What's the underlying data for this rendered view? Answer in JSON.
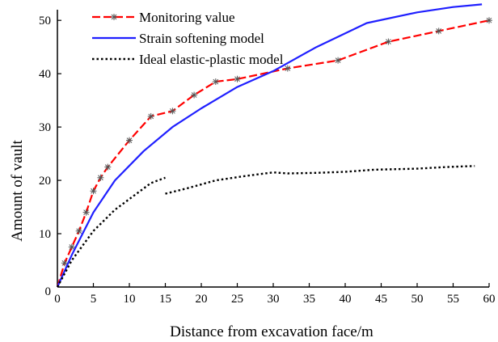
{
  "chart_data": {
    "type": "line",
    "title": "",
    "xlabel": "Distance from excavation face/m",
    "ylabel": "Amount of vault",
    "xlim": [
      0,
      60
    ],
    "ylim": [
      0,
      52
    ],
    "xticks": [
      0,
      5,
      10,
      15,
      20,
      25,
      30,
      35,
      40,
      45,
      50,
      55,
      60
    ],
    "yticks": [
      0,
      10,
      20,
      30,
      40,
      50
    ],
    "grid": false,
    "legend_position": "top-left",
    "series": [
      {
        "name": "Monitoring value",
        "color": "#ff0000",
        "line_style": "dashed",
        "marker": "asterisk",
        "x": [
          0,
          1,
          2,
          3,
          4,
          5,
          6,
          7,
          10,
          13,
          16,
          19,
          22,
          25,
          32,
          39,
          46,
          53,
          60
        ],
        "y": [
          0,
          4.5,
          7.5,
          10.5,
          14,
          18,
          20.5,
          22.5,
          27.5,
          32,
          33,
          36,
          38.5,
          39,
          41,
          42.5,
          46,
          48,
          50
        ]
      },
      {
        "name": "Strain softening model",
        "color": "#1f1fff",
        "line_style": "solid",
        "marker": "none",
        "x": [
          0,
          2,
          5,
          8,
          12,
          16,
          20,
          25,
          30,
          36,
          43,
          50,
          55,
          59
        ],
        "y": [
          0,
          6,
          14,
          20,
          25.5,
          30,
          33.5,
          37.5,
          40.5,
          45,
          49.5,
          51.5,
          52.5,
          53
        ]
      },
      {
        "name": "Ideal elastic-plastic model",
        "color": "#000000",
        "line_style": "dotted",
        "marker": "none",
        "segments": [
          {
            "x": [
              0,
              2,
              5,
              8,
              11,
              13,
              15
            ],
            "y": [
              0,
              5,
              10.5,
              14.5,
              17.5,
              19.5,
              20.5
            ]
          },
          {
            "x": [
              15,
              18,
              22,
              26,
              30,
              32,
              36,
              40,
              44,
              50,
              54,
              58
            ],
            "y": [
              17.5,
              18.5,
              20,
              20.8,
              21.5,
              21.3,
              21.4,
              21.6,
              22,
              22.2,
              22.5,
              22.7
            ]
          }
        ]
      }
    ]
  }
}
